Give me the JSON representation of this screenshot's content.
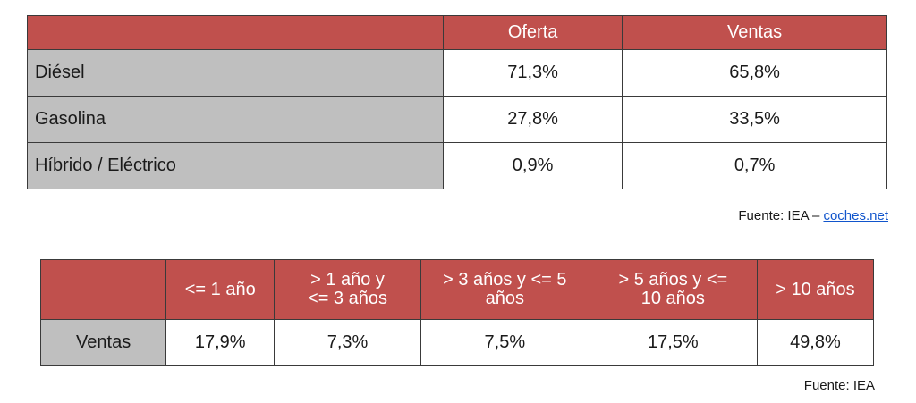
{
  "table1": {
    "header": {
      "blank": "",
      "col1": "Oferta",
      "col2": "Ventas"
    },
    "rows": [
      {
        "label": "Diésel",
        "oferta": "71,3%",
        "ventas": "65,8%"
      },
      {
        "label": "Gasolina",
        "oferta": "27,8%",
        "ventas": "33,5%"
      },
      {
        "label": "Híbrido / Eléctrico",
        "oferta": "0,9%",
        "ventas": "0,7%"
      }
    ],
    "source": {
      "prefix": "Fuente: IEA – ",
      "link": "coches.net"
    }
  },
  "table2": {
    "header": {
      "blank": "",
      "col1": [
        "<= 1 año"
      ],
      "col2": [
        "> 1 año y",
        "<= 3 años"
      ],
      "col3": [
        "> 3 años y <= 5",
        "años"
      ],
      "col4": [
        "> 5 años y <=",
        "10 años"
      ],
      "col5": [
        "> 10 años"
      ]
    },
    "row": {
      "label": "Ventas",
      "values": [
        "17,9%",
        "7,3%",
        "7,5%",
        "17,5%",
        "49,8%"
      ]
    },
    "source": "Fuente: IEA"
  },
  "colors": {
    "header_bg": "#c0504d",
    "label_bg": "#bfbfbf",
    "link": "#1155cc"
  }
}
